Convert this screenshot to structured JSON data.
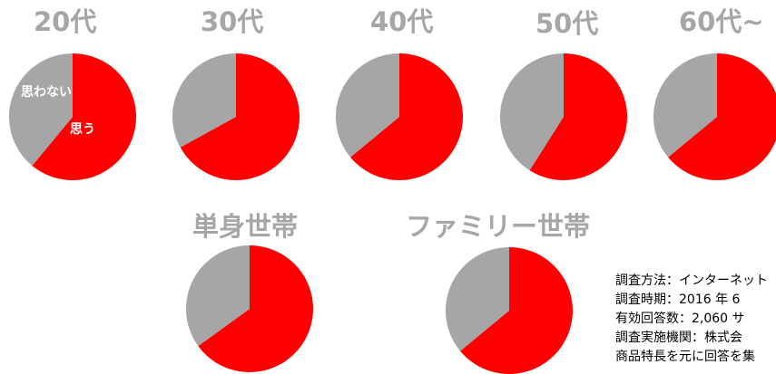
{
  "colors": {
    "yes": "#ff0000",
    "no": "#a6a6a6",
    "title": "#a6a6a6",
    "slice_label": "#ffffff"
  },
  "chart_data": [
    {
      "type": "pie",
      "title": "20代",
      "categories": [
        "思う",
        "思わない"
      ],
      "values": [
        61,
        39
      ],
      "slice_labels": {
        "yes": "思う",
        "no": "思わない"
      }
    },
    {
      "type": "pie",
      "title": "30代",
      "categories": [
        "思う",
        "思わない"
      ],
      "values": [
        67,
        33
      ]
    },
    {
      "type": "pie",
      "title": "40代",
      "categories": [
        "思う",
        "思わない"
      ],
      "values": [
        64,
        36
      ]
    },
    {
      "type": "pie",
      "title": "50代",
      "categories": [
        "思う",
        "思わない"
      ],
      "values": [
        59,
        41
      ]
    },
    {
      "type": "pie",
      "title": "60代~",
      "categories": [
        "思う",
        "思わない"
      ],
      "values": [
        64,
        36
      ]
    },
    {
      "type": "pie",
      "title": "単身世帯",
      "categories": [
        "思う",
        "思わない"
      ],
      "values": [
        65,
        35
      ]
    },
    {
      "type": "pie",
      "title": "ファミリー世帯",
      "categories": [
        "思う",
        "思わない"
      ],
      "values": [
        64,
        36
      ]
    }
  ],
  "notes": {
    "lines": [
      "調査方法：インターネット",
      "調査時期：2016 年 6",
      "有効回答数：2,060 サ",
      "調査実施機関：株式会",
      "商品特長を元に回答を集"
    ]
  }
}
